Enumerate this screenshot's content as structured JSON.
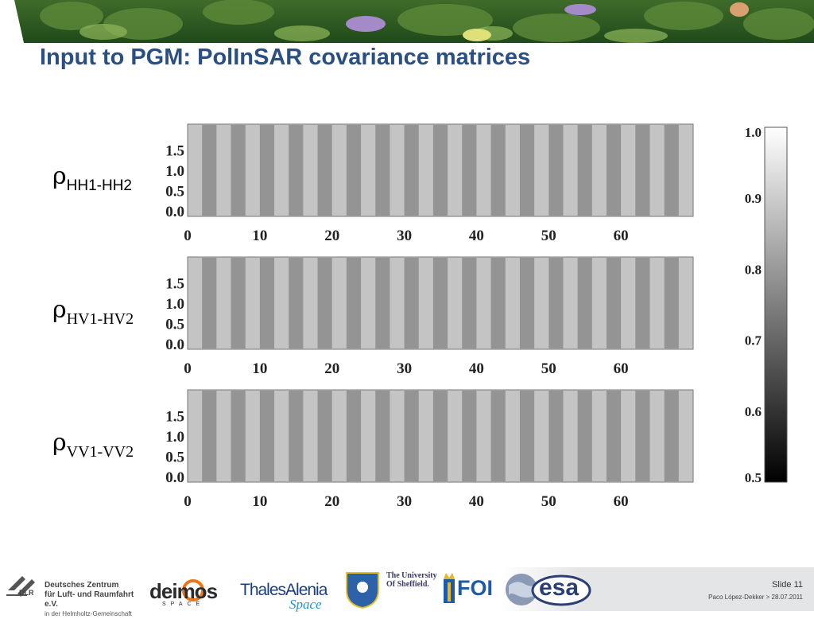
{
  "slide": {
    "title": "Input to PGM: PolInSAR covariance matrices",
    "slide_number": "Slide 11",
    "byline": "Paco López-Dekker > 28.07.2011"
  },
  "rows": [
    {
      "rho": "ρ",
      "subscript": "HH1-HH2",
      "subscript_font": "sans"
    },
    {
      "rho": "ρ",
      "subscript": "HV1-HV2",
      "subscript_font": "serif"
    },
    {
      "rho": "ρ",
      "subscript": "VV1-VV2",
      "subscript_font": "serif"
    }
  ],
  "axes": {
    "y_ticks": [
      "1.5",
      "1.0",
      "0.5",
      "0.0"
    ],
    "x_ticks": [
      "0",
      "10",
      "20",
      "30",
      "40",
      "50",
      "60"
    ],
    "x_range": [
      0,
      70
    ],
    "y_range": [
      0,
      2
    ]
  },
  "colorbar": {
    "ticks": [
      "1.0",
      "0.9",
      "0.8",
      "0.7",
      "0.6",
      "0.5"
    ],
    "range": [
      0.5,
      1.0
    ],
    "colormap": "white-to-black"
  },
  "logos": {
    "dlr_line1": "Deutsches Zentrum",
    "dlr_line2": "für Luft- und Raumfahrt e.V.",
    "dlr_line3": "in der Helmholtz-Gemeinschaft",
    "dlr_abbr": "DLR",
    "deimos": "deimos",
    "deimos_sub": "SPACE",
    "thales_line1": "ThalesAlenia",
    "thales_line2": "Space",
    "sheffield": "The University Of Sheffield.",
    "foi": "FOI",
    "esa": "esa"
  },
  "colors": {
    "title": "#2a4f82",
    "light_stripe": "#c4c4c4",
    "dark_stripe": "#8c8c8c"
  }
}
